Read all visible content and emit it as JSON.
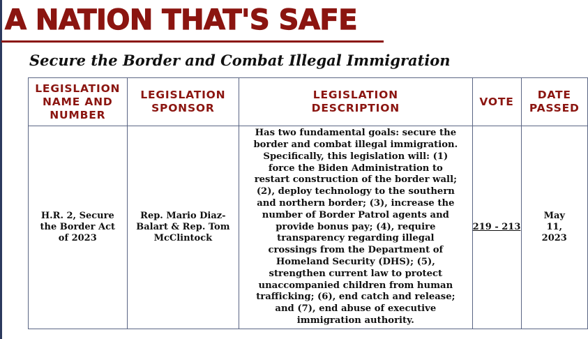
{
  "header": {
    "title": "A NATION THAT'S SAFE",
    "subtitle": "Secure the Border and Combat Illegal Immigration"
  },
  "table": {
    "columns": [
      "LEGISLATION NAME AND NUMBER",
      "LEGISLATION SPONSOR",
      "LEGISLATION DESCRIPTION",
      "VOTE",
      "DATE PASSED"
    ],
    "rows": [
      {
        "name": "H.R. 2, Secure the Border Act of 2023",
        "sponsor": "Rep. Mario Diaz-Balart & Rep. Tom McClintock",
        "description_lines": [
          "Has two fundamental goals: secure the",
          "border and combat illegal immigration.",
          "Specifically, this legislation will: (1)",
          "force the Biden Administration to",
          "restart construction of the border wall;",
          "(2), deploy technology to the southern",
          "and northern border; (3), increase the",
          "number of Border Patrol agents and",
          "provide bonus pay; (4), require",
          "transparency regarding illegal",
          "crossings from the Department of",
          "Homeland Security (DHS); (5),",
          "strengthen current law to protect",
          "unaccompanied children from human",
          "trafficking; (6), end catch and release;",
          "and (7), end abuse of executive",
          "immigration authority."
        ],
        "vote": "219 - 213",
        "date": "May 11, 2023"
      }
    ]
  },
  "colors": {
    "accent": "#8b1510",
    "border": "#5a6584"
  }
}
